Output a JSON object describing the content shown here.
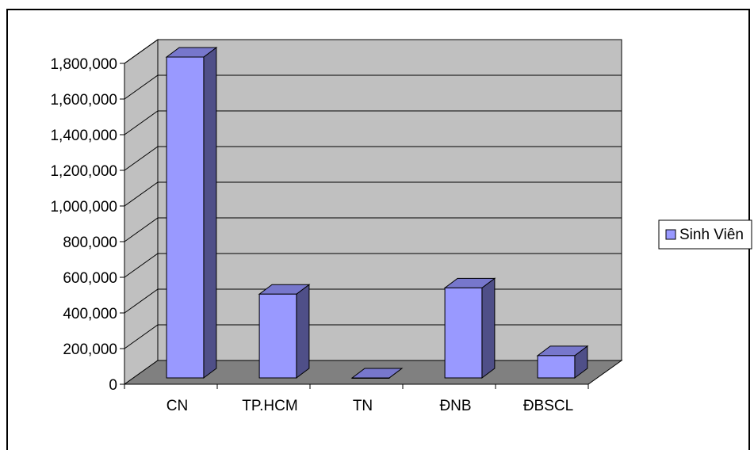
{
  "chart_data": {
    "type": "bar",
    "style": "3d-column",
    "categories": [
      "CN",
      "TP.HCM",
      "TN",
      "ĐNB",
      "ĐBSCL"
    ],
    "series": [
      {
        "name": "Sinh Viên",
        "values": [
          1800000,
          470000,
          0,
          505000,
          125000
        ]
      }
    ],
    "ylim": [
      0,
      1800000
    ],
    "yticks": [
      0,
      200000,
      400000,
      600000,
      800000,
      1000000,
      1200000,
      1400000,
      1600000,
      1800000
    ],
    "ytick_labels": [
      "0",
      "200,000",
      "400,000",
      "600,000",
      "800,000",
      "1,000,000",
      "1,200,000",
      "1,400,000",
      "1,600,000",
      "1,800,000"
    ],
    "grid": true,
    "legend": "right",
    "colors": {
      "bar_front": "#9999ff",
      "bar_side": "#4f4f88",
      "bar_top": "#7777cc",
      "wall": "#c0c0c0",
      "floor": "#808080",
      "gridline": "#000000"
    }
  }
}
